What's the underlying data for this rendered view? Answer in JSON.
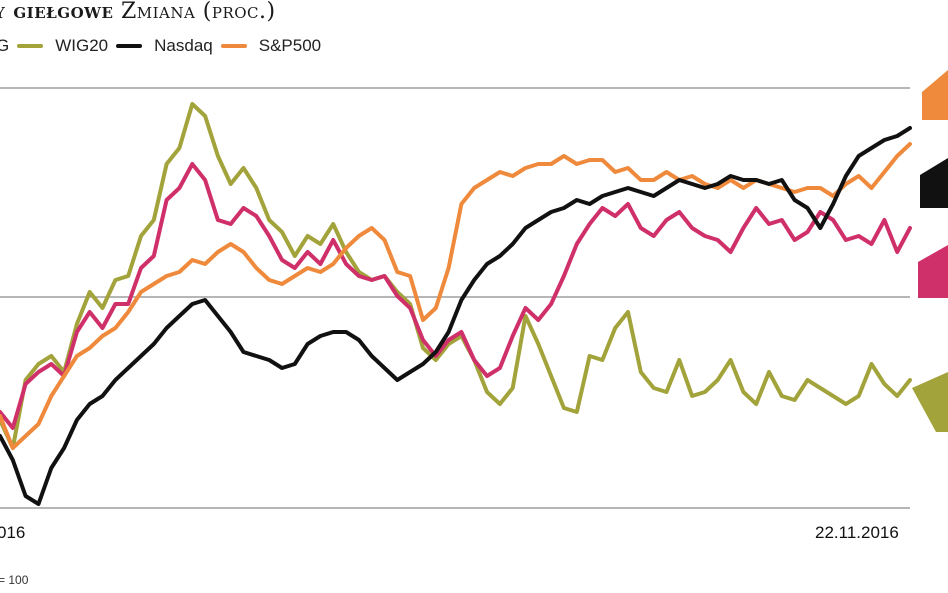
{
  "header": {
    "title_bold": "y giełgowe",
    "title_rest": "Zmiana (proc.)"
  },
  "legend": [
    {
      "label": "G",
      "color": "#d0306a"
    },
    {
      "label": "WIG20",
      "color": "#a3a33c"
    },
    {
      "label": "Nasdaq",
      "color": "#111111"
    },
    {
      "label": "S&P500",
      "color": "#ef8a3d"
    }
  ],
  "footnote": "= 100",
  "chart_data": {
    "type": "line",
    "x_ticks": [
      "016",
      "22.11.2016"
    ],
    "grid": true,
    "series": [
      {
        "name": "WIG20",
        "color": "#a3a33c",
        "values": [
          102,
          95,
          112,
          116,
          118,
          114,
          126,
          134,
          130,
          137,
          138,
          148,
          152,
          166,
          170,
          181,
          178,
          168,
          161,
          165,
          160,
          152,
          149,
          143,
          148,
          146,
          151,
          144,
          139,
          137,
          138,
          134,
          131,
          120,
          117,
          121,
          123,
          117,
          109,
          106,
          110,
          128,
          121,
          113,
          105,
          104,
          118,
          117,
          125,
          129,
          114,
          110,
          109,
          117,
          108,
          109,
          112,
          117,
          109,
          106,
          114,
          108,
          107,
          112,
          110,
          108,
          106,
          108,
          116,
          111,
          108,
          112
        ]
      },
      {
        "name": "G",
        "color": "#d0306a",
        "values": [
          104,
          100,
          111,
          114,
          116,
          113,
          124,
          129,
          125,
          131,
          131,
          140,
          143,
          157,
          160,
          166,
          162,
          152,
          151,
          155,
          153,
          148,
          142,
          140,
          144,
          141,
          147,
          141,
          138,
          137,
          138,
          133,
          130,
          122,
          118,
          122,
          124,
          117,
          113,
          115,
          123,
          130,
          127,
          131,
          138,
          146,
          151,
          155,
          153,
          156,
          150,
          148,
          152,
          154,
          150,
          148,
          147,
          144,
          150,
          155,
          151,
          152,
          147,
          149,
          154,
          152,
          147,
          148,
          146,
          152,
          144,
          150
        ]
      },
      {
        "name": "S&P500",
        "color": "#ef8a3d",
        "values": [
          103,
          95,
          98,
          101,
          108,
          113,
          118,
          120,
          123,
          125,
          129,
          134,
          136,
          138,
          139,
          142,
          141,
          144,
          146,
          144,
          140,
          137,
          136,
          138,
          140,
          139,
          141,
          145,
          148,
          150,
          147,
          139,
          138,
          127,
          130,
          140,
          156,
          160,
          162,
          164,
          163,
          165,
          166,
          166,
          168,
          166,
          167,
          167,
          164,
          165,
          162,
          162,
          164,
          162,
          163,
          161,
          160,
          162,
          160,
          162,
          161,
          160,
          159,
          160,
          160,
          158,
          161,
          163,
          160,
          164,
          168,
          171
        ]
      },
      {
        "name": "Nasdaq",
        "color": "#111111",
        "values": [
          98,
          92,
          83,
          81,
          90,
          95,
          102,
          106,
          108,
          112,
          115,
          118,
          121,
          125,
          128,
          131,
          132,
          128,
          124,
          119,
          118,
          117,
          115,
          116,
          121,
          123,
          124,
          124,
          122,
          118,
          115,
          112,
          114,
          116,
          119,
          124,
          132,
          137,
          141,
          143,
          146,
          150,
          152,
          154,
          155,
          157,
          156,
          158,
          159,
          160,
          159,
          158,
          160,
          162,
          161,
          160,
          161,
          163,
          162,
          162,
          161,
          162,
          157,
          155,
          150,
          156,
          163,
          168,
          170,
          172,
          173,
          175
        ]
      }
    ]
  },
  "markers": [
    {
      "color": "#ef8a3d"
    },
    {
      "color": "#111111"
    },
    {
      "color": "#d0306a"
    },
    {
      "color": "#a3a33c"
    }
  ]
}
